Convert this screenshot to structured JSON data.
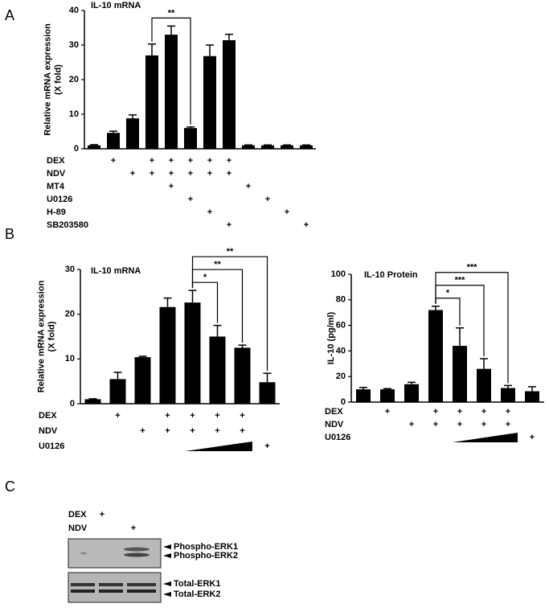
{
  "panel_labels": [
    "A",
    "B",
    "C"
  ],
  "chart_data": [
    {
      "type": "bar",
      "title": "IL-10 mRNA",
      "ylabel": [
        "Relative mRNA expression",
        "(X fold)"
      ],
      "categories": [
        null,
        null,
        null,
        null,
        null,
        null,
        null,
        null,
        null,
        null,
        null,
        null
      ],
      "values": [
        1,
        4.6,
        8.8,
        27,
        33,
        6,
        26.8,
        31.4,
        1,
        1,
        1,
        1
      ],
      "errors": [
        0.2,
        0.5,
        1,
        3.3,
        2.5,
        0.3,
        3.2,
        1.7,
        0.1,
        0.1,
        0.1,
        0.1
      ],
      "color": "#000000",
      "ylim": [
        0,
        40
      ],
      "yticks": [
        0,
        10,
        20,
        30,
        40
      ],
      "treatments": [
        {
          "name": "DEX",
          "marks": [
            null,
            "+",
            null,
            "+",
            "+",
            "+",
            "+",
            "+",
            null,
            null,
            null,
            null
          ]
        },
        {
          "name": "NDV",
          "marks": [
            null,
            null,
            "+",
            "+",
            "+",
            "+",
            "+",
            "+",
            null,
            null,
            null,
            null
          ]
        },
        {
          "name": "MT4",
          "marks": [
            null,
            null,
            null,
            null,
            "+",
            null,
            null,
            null,
            "+",
            null,
            null,
            null
          ]
        },
        {
          "name": "U0126",
          "marks": [
            null,
            null,
            null,
            null,
            null,
            "+",
            null,
            null,
            null,
            "+",
            null,
            null
          ]
        },
        {
          "name": "H-89",
          "marks": [
            null,
            null,
            null,
            null,
            null,
            null,
            "+",
            null,
            null,
            null,
            "+",
            null
          ]
        },
        {
          "name": "SB203580",
          "marks": [
            null,
            null,
            null,
            null,
            null,
            null,
            null,
            "+",
            null,
            null,
            null,
            "+"
          ]
        }
      ],
      "annotations": [
        {
          "text": "**",
          "from": 3,
          "to": 5
        }
      ]
    },
    {
      "type": "bar",
      "title": "IL-10 mRNA",
      "ylabel": [
        "Relative mRNA expression",
        "(X fold)"
      ],
      "categories": [
        null,
        null,
        null,
        null,
        null,
        null,
        null,
        null
      ],
      "values": [
        1,
        5.5,
        10.4,
        21.6,
        22.6,
        15,
        12.5,
        4.8
      ],
      "errors": [
        0.1,
        1.5,
        0.2,
        2,
        2.7,
        2.5,
        0.6,
        2
      ],
      "color": "#000000",
      "ylim": [
        0,
        30
      ],
      "yticks": [
        0,
        10,
        20,
        30
      ],
      "treatments": [
        {
          "name": "DEX",
          "marks": [
            null,
            "+",
            null,
            "+",
            "+",
            "+",
            "+",
            null
          ]
        },
        {
          "name": "NDV",
          "marks": [
            null,
            null,
            "+",
            "+",
            "+",
            "+",
            "+",
            null
          ]
        },
        {
          "name": "U0126",
          "marks": [
            null,
            null,
            null,
            null,
            null,
            null,
            null,
            "+"
          ],
          "gradient": [
            4,
            6
          ]
        }
      ],
      "annotations": [
        {
          "text": "*",
          "from": 4,
          "to": 5
        },
        {
          "text": "**",
          "from": 4,
          "to": 6
        },
        {
          "text": "**",
          "from": 4,
          "to": 7
        }
      ]
    },
    {
      "type": "bar",
      "title": "IL-10 Protein",
      "ylabel": [
        "IL-10 (pg/ml)"
      ],
      "categories": [
        null,
        null,
        null,
        null,
        null,
        null,
        null,
        null
      ],
      "values": [
        10,
        10,
        14,
        72,
        44,
        26,
        11,
        8.5
      ],
      "errors": [
        1.5,
        0.5,
        1.5,
        3,
        14,
        8,
        2,
        3.5
      ],
      "color": "#000000",
      "ylim": [
        0,
        100
      ],
      "yticks": [
        0,
        20,
        40,
        60,
        80,
        100
      ],
      "treatments": [
        {
          "name": "DEX",
          "marks": [
            null,
            "+",
            null,
            "+",
            "+",
            "+",
            "+",
            null
          ]
        },
        {
          "name": "NDV",
          "marks": [
            null,
            null,
            "+",
            "+",
            "+",
            "+",
            "+",
            null
          ]
        },
        {
          "name": "U0126",
          "marks": [
            null,
            null,
            null,
            null,
            null,
            null,
            null,
            "+"
          ],
          "gradient": [
            4,
            6
          ]
        }
      ],
      "annotations": [
        {
          "text": "*",
          "from": 3,
          "to": 4
        },
        {
          "text": "***",
          "from": 3,
          "to": 5
        },
        {
          "text": "***",
          "from": 3,
          "to": 6
        }
      ]
    }
  ],
  "blot": {
    "rows": [
      {
        "name": "DEX",
        "marks": [
          null,
          "+",
          null
        ]
      },
      {
        "name": "NDV",
        "marks": [
          null,
          null,
          "+"
        ]
      }
    ],
    "bands": [
      "Phospho-ERK1",
      "Phospho-ERK2",
      "Total-ERK1",
      "Total-ERK2"
    ]
  }
}
